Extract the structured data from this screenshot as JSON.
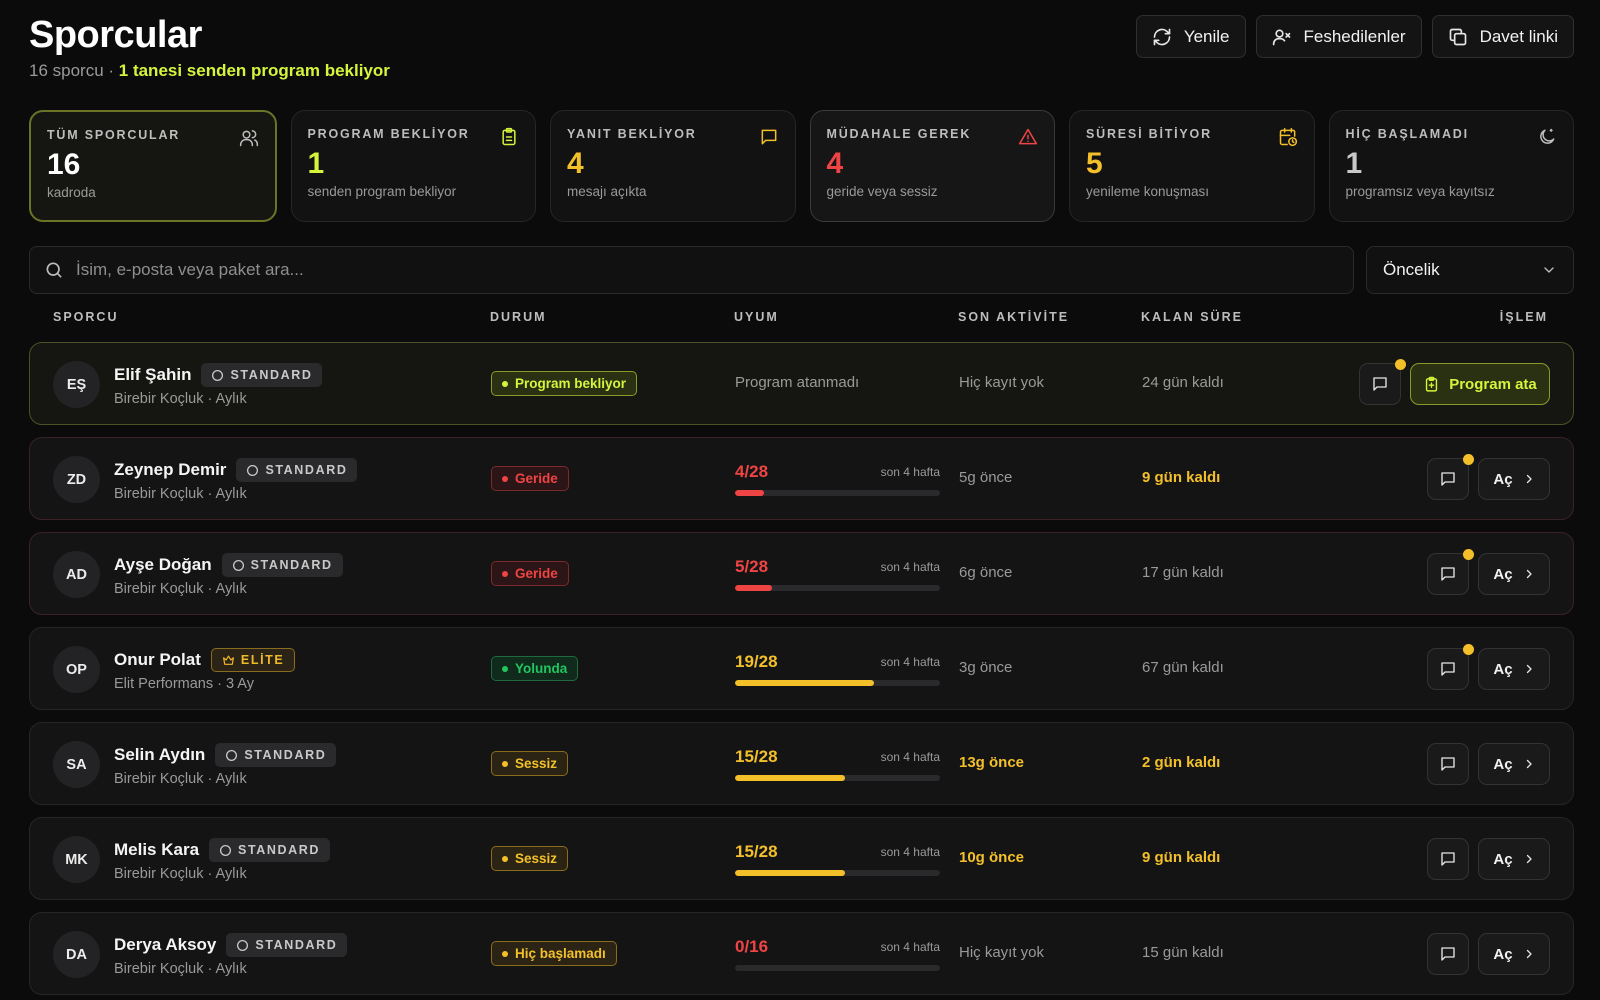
{
  "header": {
    "title": "Sporcular",
    "count_text": "16 sporcu · ",
    "pending_text": "1 tanesi senden program bekliyor"
  },
  "actions": {
    "refresh": "Yenile",
    "cancelled": "Feshedilenler",
    "invite": "Davet linki"
  },
  "stats": [
    {
      "label": "TÜM SPORCULAR",
      "value": "16",
      "desc": "kadroda",
      "color": "#ffffff",
      "icon": "users-icon"
    },
    {
      "label": "PROGRAM BEKLİYOR",
      "value": "1",
      "desc": "senden program bekliyor",
      "color": "#d4f53c",
      "icon": "clipboard-icon"
    },
    {
      "label": "YANIT BEKLİYOR",
      "value": "4",
      "desc": "mesajı açıkta",
      "color": "#f3c02a",
      "icon": "message-icon"
    },
    {
      "label": "MÜDAHALE GEREK",
      "value": "4",
      "desc": "geride veya sessiz",
      "color": "#ef4444",
      "icon": "alert-triangle-icon"
    },
    {
      "label": "SÜRESİ BİTİYOR",
      "value": "5",
      "desc": "yenileme konuşması",
      "color": "#f3c02a",
      "icon": "calendar-clock-icon"
    },
    {
      "label": "HİÇ BAŞLAMADI",
      "value": "1",
      "desc": "programsız veya kayıtsız",
      "color": "#c9c9c9",
      "icon": "moon-icon"
    }
  ],
  "search": {
    "placeholder": "İsim, e-posta veya paket ara..."
  },
  "sort": {
    "selected": "Öncelik"
  },
  "columns": {
    "athlete": "SPORCU",
    "status": "DURUM",
    "adherence": "UYUM",
    "last_activity": "SON AKTİVİTE",
    "remaining": "KALAN SÜRE",
    "action": "İŞLEM"
  },
  "colors": {
    "accent": "#d4f53c",
    "red": "#ef4444",
    "yellow": "#f3c02a",
    "green": "#22c55e"
  },
  "athletes": [
    {
      "initials": "EŞ",
      "name": "Elif Şahin",
      "tier": "STANDARD",
      "tier_type": "standard",
      "plan": "Birebir Koçluk · Aylık",
      "status": "Program bekliyor",
      "status_type": "pending",
      "adherence_text": "Program atanmadı",
      "activity": "Hiç kayıt yok",
      "activity_warn": false,
      "remaining": "24 gün kaldı",
      "remaining_warn": false,
      "unread": true,
      "action": "Program ata",
      "action_type": "assign"
    },
    {
      "initials": "ZD",
      "name": "Zeynep Demir",
      "tier": "STANDARD",
      "tier_type": "standard",
      "plan": "Birebir Koçluk · Aylık",
      "status": "Geride",
      "status_type": "behind",
      "adherence": "4/28",
      "adherence_done": 4,
      "adherence_total": 28,
      "adherence_period": "son 4 hafta",
      "adherence_color": "red",
      "activity": "5g önce",
      "activity_warn": false,
      "remaining": "9 gün kaldı",
      "remaining_warn": true,
      "unread": true,
      "action": "Aç",
      "action_type": "open"
    },
    {
      "initials": "AD",
      "name": "Ayşe Doğan",
      "tier": "STANDARD",
      "tier_type": "standard",
      "plan": "Birebir Koçluk · Aylık",
      "status": "Geride",
      "status_type": "behind",
      "adherence": "5/28",
      "adherence_done": 5,
      "adherence_total": 28,
      "adherence_period": "son 4 hafta",
      "adherence_color": "red",
      "activity": "6g önce",
      "activity_warn": false,
      "remaining": "17 gün kaldı",
      "remaining_warn": false,
      "unread": true,
      "action": "Aç",
      "action_type": "open"
    },
    {
      "initials": "OP",
      "name": "Onur Polat",
      "tier": "ELİTE",
      "tier_type": "elite",
      "plan": "Elit Performans · 3 Ay",
      "status": "Yolunda",
      "status_type": "ok",
      "adherence": "19/28",
      "adherence_done": 19,
      "adherence_total": 28,
      "adherence_period": "son 4 hafta",
      "adherence_color": "yellow",
      "activity": "3g önce",
      "activity_warn": false,
      "remaining": "67 gün kaldı",
      "remaining_warn": false,
      "unread": true,
      "action": "Aç",
      "action_type": "open"
    },
    {
      "initials": "SA",
      "name": "Selin Aydın",
      "tier": "STANDARD",
      "tier_type": "standard",
      "plan": "Birebir Koçluk · Aylık",
      "status": "Sessiz",
      "status_type": "silent",
      "adherence": "15/28",
      "adherence_done": 15,
      "adherence_total": 28,
      "adherence_period": "son 4 hafta",
      "adherence_color": "yellow",
      "activity": "13g önce",
      "activity_warn": true,
      "remaining": "2 gün kaldı",
      "remaining_warn": true,
      "unread": false,
      "action": "Aç",
      "action_type": "open"
    },
    {
      "initials": "MK",
      "name": "Melis Kara",
      "tier": "STANDARD",
      "tier_type": "standard",
      "plan": "Birebir Koçluk · Aylık",
      "status": "Sessiz",
      "status_type": "silent",
      "adherence": "15/28",
      "adherence_done": 15,
      "adherence_total": 28,
      "adherence_period": "son 4 hafta",
      "adherence_color": "yellow",
      "activity": "10g önce",
      "activity_warn": true,
      "remaining": "9 gün kaldı",
      "remaining_warn": true,
      "unread": false,
      "action": "Aç",
      "action_type": "open"
    },
    {
      "initials": "DA",
      "name": "Derya Aksoy",
      "tier": "STANDARD",
      "tier_type": "standard",
      "plan": "Birebir Koçluk · Aylık",
      "status": "Hiç başlamadı",
      "status_type": "notstarted",
      "adherence": "0/16",
      "adherence_done": 0,
      "adherence_total": 16,
      "adherence_period": "son 4 hafta",
      "adherence_color": "red",
      "activity": "Hiç kayıt yok",
      "activity_warn": false,
      "remaining": "15 gün kaldı",
      "remaining_warn": false,
      "unread": false,
      "action": "Aç",
      "action_type": "open"
    }
  ]
}
